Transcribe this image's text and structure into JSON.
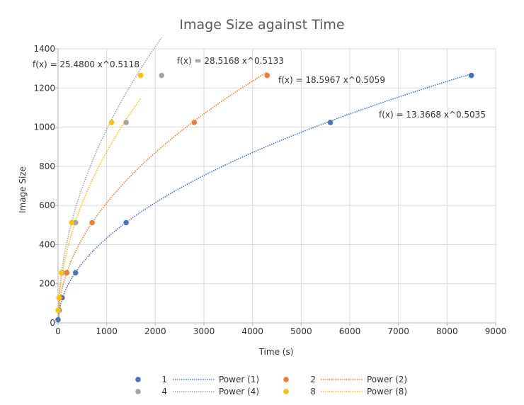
{
  "chart_data": {
    "type": "scatter",
    "title": "Image Size against Time",
    "xlabel": "Time (s)",
    "ylabel": "Image Size",
    "xlim": [
      0,
      9000
    ],
    "ylim": [
      0,
      1400
    ],
    "x_ticks": [
      "0",
      "1000",
      "2000",
      "3000",
      "4000",
      "5000",
      "6000",
      "7000",
      "8000",
      "9000"
    ],
    "y_ticks": [
      "0",
      "200",
      "400",
      "600",
      "800",
      "1000",
      "1200",
      "1400"
    ],
    "grid": true,
    "legend_position": "bottom",
    "series": [
      {
        "name": "1",
        "color": "#4472c4",
        "trend_name": "Power (1)",
        "a": 13.3668,
        "b": 0.5035,
        "equation": "f(x) = 13.3668 x^0.5035",
        "points": [
          [
            0,
            16
          ],
          [
            20,
            64
          ],
          [
            85,
            128
          ],
          [
            360,
            256
          ],
          [
            1400,
            512
          ],
          [
            5600,
            1024
          ],
          [
            8500,
            1264
          ]
        ]
      },
      {
        "name": "2",
        "color": "#ed7d31",
        "trend_name": "Power (2)",
        "a": 18.5967,
        "b": 0.5059,
        "equation": "f(x) = 18.5967 x^0.5059",
        "points": [
          [
            10,
            64
          ],
          [
            40,
            128
          ],
          [
            180,
            256
          ],
          [
            700,
            512
          ],
          [
            2800,
            1024
          ],
          [
            4300,
            1264
          ]
        ]
      },
      {
        "name": "4",
        "color": "#a5a5a5",
        "trend_name": "Power (4)",
        "a": 28.5168,
        "b": 0.5133,
        "equation": "f(x) = 28.5168 x^0.5133",
        "points": [
          [
            5,
            64
          ],
          [
            20,
            128
          ],
          [
            90,
            256
          ],
          [
            360,
            512
          ],
          [
            1400,
            1024
          ],
          [
            2130,
            1264
          ]
        ]
      },
      {
        "name": "8",
        "color": "#ffc000",
        "trend_name": "Power (8)",
        "a": 25.48,
        "b": 0.5118,
        "equation": "f(x) = 25.4800 x^0.5118",
        "points": [
          [
            5,
            64
          ],
          [
            20,
            128
          ],
          [
            70,
            256
          ],
          [
            280,
            512
          ],
          [
            1100,
            1024
          ],
          [
            1700,
            1264
          ]
        ]
      }
    ]
  }
}
